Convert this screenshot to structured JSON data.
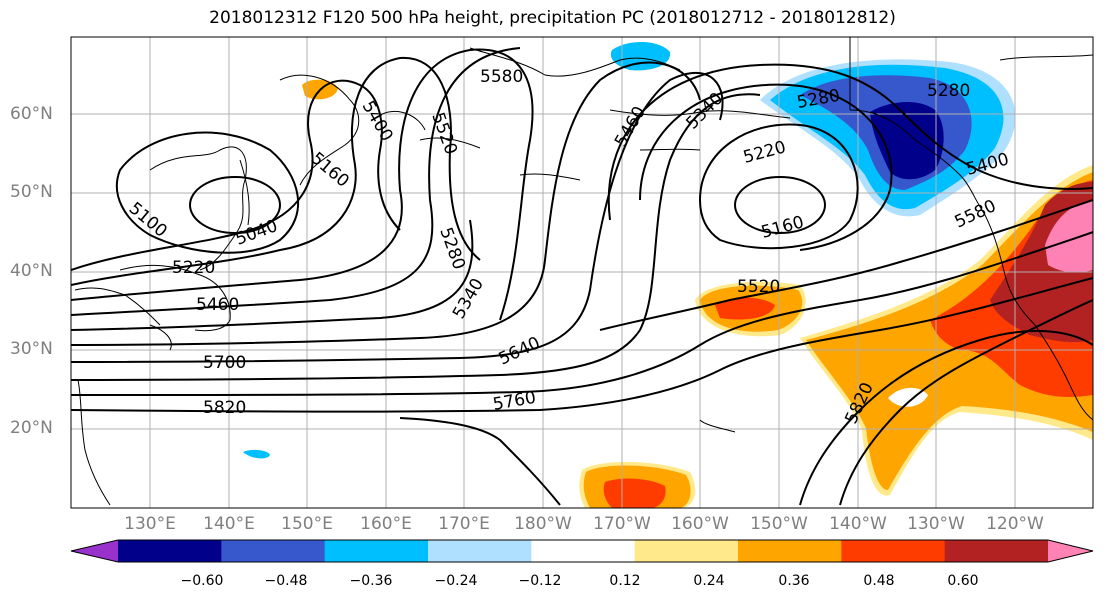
{
  "title": "2018012312 F120 500 hPa height, precipitation PC (2018012712 - 2018012812)",
  "lat_labels": [
    "60°N",
    "50°N",
    "40°N",
    "30°N",
    "20°N"
  ],
  "lon_labels": [
    "130°E",
    "140°E",
    "150°E",
    "160°E",
    "170°E",
    "180°W",
    "170°W",
    "160°W",
    "150°W",
    "140°W",
    "130°W",
    "120°W"
  ],
  "colorbar": {
    "colors": [
      "#9932cc",
      "#00008b",
      "#3658cc",
      "#00bfff",
      "#afe0ff",
      "#ffffff",
      "#ffe98a",
      "#ffa500",
      "#ff3c00",
      "#b22222",
      "#ff82b4"
    ],
    "tick_labels": [
      "−0.60",
      "−0.48",
      "−0.36",
      "−0.24",
      "−0.12",
      "0.12",
      "0.24",
      "0.36",
      "0.48",
      "0.60"
    ]
  },
  "contour_labels": [
    "5580",
    "5400",
    "5520",
    "5160",
    "5100",
    "5040",
    "5220",
    "5460",
    "5280",
    "5340",
    "5700",
    "5820",
    "5640",
    "5760",
    "5460",
    "5340",
    "5280",
    "5220",
    "5160",
    "5520",
    "5280",
    "5400",
    "5580",
    "5820"
  ]
}
